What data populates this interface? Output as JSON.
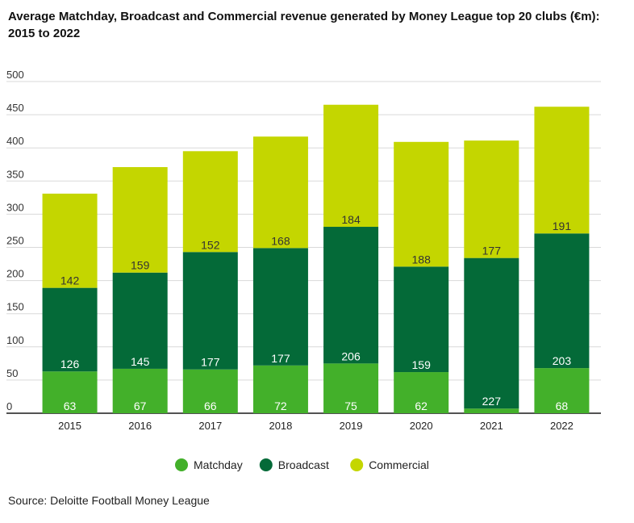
{
  "chart_data": {
    "type": "bar",
    "stacked": true,
    "title": "Average Matchday, Broadcast and Commercial revenue generated by Money League top 20 clubs (€m): 2015 to 2022",
    "categories": [
      "2015",
      "2016",
      "2017",
      "2018",
      "2019",
      "2020",
      "2021",
      "2022"
    ],
    "series": [
      {
        "name": "Matchday",
        "color": "#43b02a",
        "values": [
          63,
          67,
          66,
          72,
          75,
          62,
          7,
          68
        ],
        "labels": [
          "63",
          "67",
          "66",
          "72",
          "75",
          "62",
          "",
          "68"
        ]
      },
      {
        "name": "Broadcast",
        "color": "#046a38",
        "values": [
          126,
          145,
          177,
          177,
          206,
          159,
          227,
          203
        ],
        "labels": [
          "126",
          "145",
          "177",
          "177",
          "206",
          "159",
          "227",
          "203"
        ]
      },
      {
        "name": "Commercial",
        "color": "#c4d600",
        "values": [
          142,
          159,
          152,
          168,
          184,
          188,
          177,
          191
        ],
        "labels": [
          "142",
          "159",
          "152",
          "168",
          "184",
          "188",
          "177",
          "191"
        ]
      }
    ],
    "ylim": [
      0,
      500
    ],
    "yticks": [
      0,
      50,
      100,
      150,
      200,
      250,
      300,
      350,
      400,
      450,
      500
    ],
    "grid": true,
    "legend": "bottom"
  },
  "source": "Source: Deloitte Football Money League"
}
